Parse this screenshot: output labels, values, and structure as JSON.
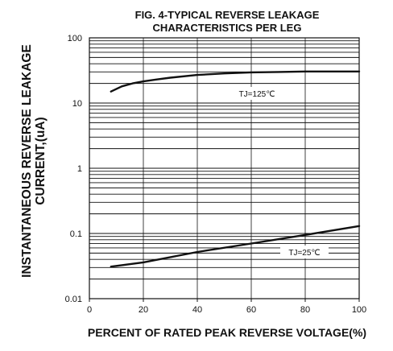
{
  "chart_data": {
    "type": "line",
    "title_lines": [
      "FIG. 4-TYPICAL REVERSE LEAKAGE",
      "CHARACTERISTICS PER LEG"
    ],
    "xlabel": "PERCENT OF RATED PEAK REVERSE VOLTAGE(%)",
    "ylabel_lines": [
      "INSTANTANEOUS REVERSE LEAKAGE",
      "CURRENT,(uA)"
    ],
    "xlim": [
      0,
      100
    ],
    "ylim": [
      0.01,
      100
    ],
    "yscale": "log",
    "grid": "horizontal minor log lines",
    "x_ticks": [
      "0",
      "20",
      "40",
      "60",
      "80",
      "100"
    ],
    "y_ticks": [
      "0.01",
      "0.1",
      "1",
      "10",
      "100"
    ],
    "series": [
      {
        "name": "TJ=125℃",
        "x": [
          8,
          12,
          16,
          20,
          25,
          30,
          40,
          50,
          60,
          70,
          80,
          90,
          100
        ],
        "y": [
          15,
          18,
          20,
          21.5,
          23,
          24.5,
          27,
          28.5,
          29.5,
          30,
          30.5,
          30.5,
          30.5
        ]
      },
      {
        "name": "TJ=25℃",
        "x": [
          8,
          20,
          40,
          60,
          80,
          100
        ],
        "y": [
          0.031,
          0.036,
          0.052,
          0.07,
          0.095,
          0.13
        ]
      }
    ]
  }
}
